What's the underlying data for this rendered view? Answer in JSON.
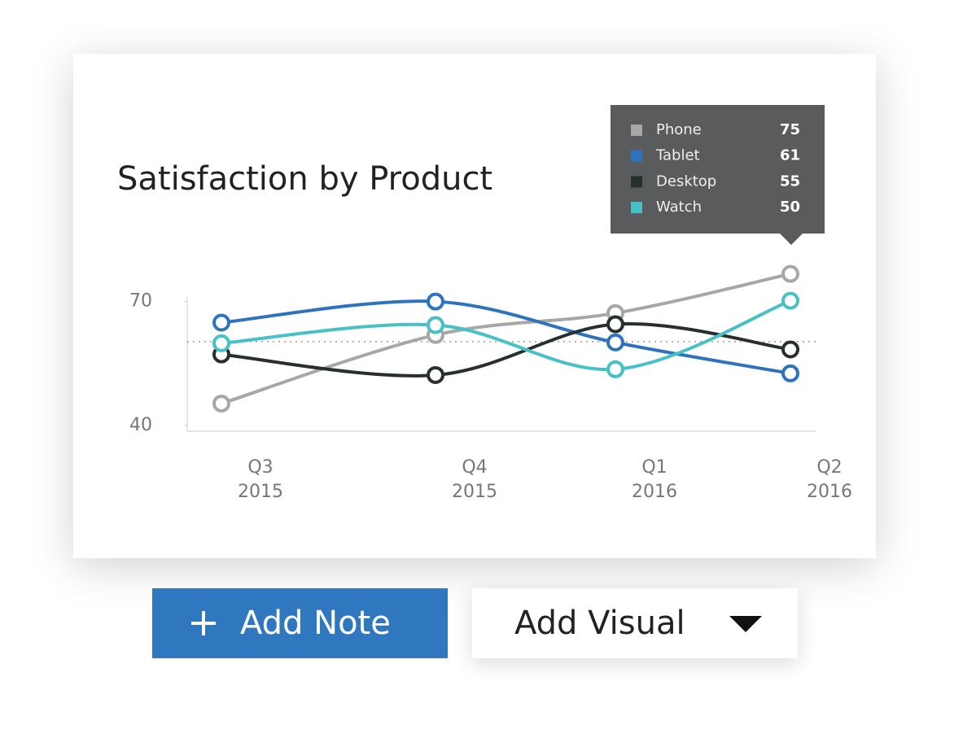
{
  "chart_data": {
    "type": "line",
    "title": "Satisfaction by Product",
    "categories": [
      "Q3 2015",
      "Q4 2015",
      "Q1 2016",
      "Q2 2016"
    ],
    "series": [
      {
        "name": "Phone",
        "color": "#a7a7a9",
        "values": [
          45.3,
          61.9,
          67.2,
          76.7
        ]
      },
      {
        "name": "Tablet",
        "color": "#2f73bf",
        "values": [
          64.9,
          70,
          60.1,
          52.6
        ]
      },
      {
        "name": "Desktop",
        "color": "#27302f",
        "values": [
          57.2,
          52.2,
          64.5,
          58.4
        ]
      },
      {
        "name": "Watch",
        "color": "#47c1c6",
        "values": [
          59.9,
          64.3,
          53.6,
          70.2
        ]
      }
    ],
    "ylim": [
      38.6,
      78
    ],
    "yticks": [
      40,
      70
    ],
    "reference_line": 60.3,
    "tooltip_values": [
      75,
      61,
      55,
      50
    ]
  },
  "buttons": [
    {
      "label": "Add Note"
    },
    {
      "label": "Add Visual"
    }
  ]
}
